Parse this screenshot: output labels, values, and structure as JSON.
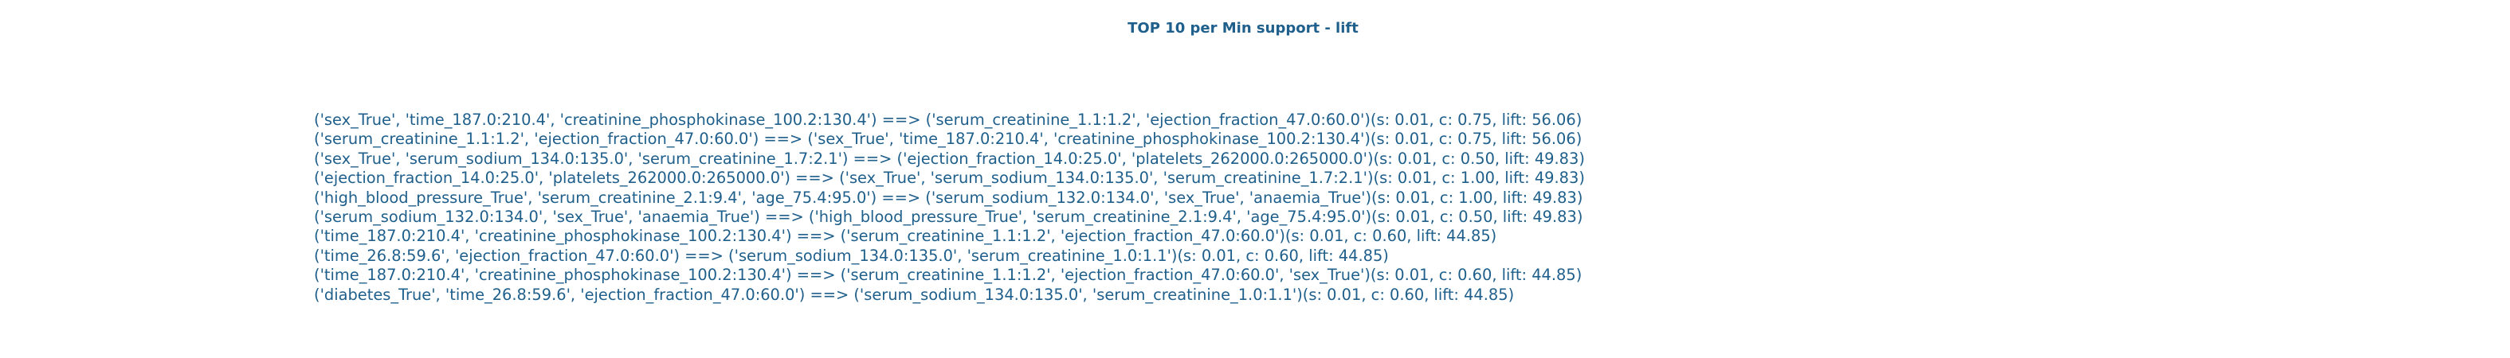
{
  "title": "TOP 10 per Min support - lift",
  "colors": {
    "text": "#1f5f8b",
    "background": "#ffffff"
  },
  "rules": [
    "('sex_True', 'time_187.0:210.4', 'creatinine_phosphokinase_100.2:130.4') ==> ('serum_creatinine_1.1:1.2', 'ejection_fraction_47.0:60.0')(s: 0.01, c: 0.75, lift: 56.06)",
    "('serum_creatinine_1.1:1.2', 'ejection_fraction_47.0:60.0') ==> ('sex_True', 'time_187.0:210.4', 'creatinine_phosphokinase_100.2:130.4')(s: 0.01, c: 0.75, lift: 56.06)",
    "('sex_True', 'serum_sodium_134.0:135.0', 'serum_creatinine_1.7:2.1') ==> ('ejection_fraction_14.0:25.0', 'platelets_262000.0:265000.0')(s: 0.01, c: 0.50, lift: 49.83)",
    "('ejection_fraction_14.0:25.0', 'platelets_262000.0:265000.0') ==> ('sex_True', 'serum_sodium_134.0:135.0', 'serum_creatinine_1.7:2.1')(s: 0.01, c: 1.00, lift: 49.83)",
    "('high_blood_pressure_True', 'serum_creatinine_2.1:9.4', 'age_75.4:95.0') ==> ('serum_sodium_132.0:134.0', 'sex_True', 'anaemia_True')(s: 0.01, c: 1.00, lift: 49.83)",
    "('serum_sodium_132.0:134.0', 'sex_True', 'anaemia_True') ==> ('high_blood_pressure_True', 'serum_creatinine_2.1:9.4', 'age_75.4:95.0')(s: 0.01, c: 0.50, lift: 49.83)",
    "('time_187.0:210.4', 'creatinine_phosphokinase_100.2:130.4') ==> ('serum_creatinine_1.1:1.2', 'ejection_fraction_47.0:60.0')(s: 0.01, c: 0.60, lift: 44.85)",
    "('time_26.8:59.6', 'ejection_fraction_47.0:60.0') ==> ('serum_sodium_134.0:135.0', 'serum_creatinine_1.0:1.1')(s: 0.01, c: 0.60, lift: 44.85)",
    "('time_187.0:210.4', 'creatinine_phosphokinase_100.2:130.4') ==> ('serum_creatinine_1.1:1.2', 'ejection_fraction_47.0:60.0', 'sex_True')(s: 0.01, c: 0.60, lift: 44.85)",
    "('diabetes_True', 'time_26.8:59.6', 'ejection_fraction_47.0:60.0') ==> ('serum_sodium_134.0:135.0', 'serum_creatinine_1.0:1.1')(s: 0.01, c: 0.60, lift: 44.85)"
  ]
}
